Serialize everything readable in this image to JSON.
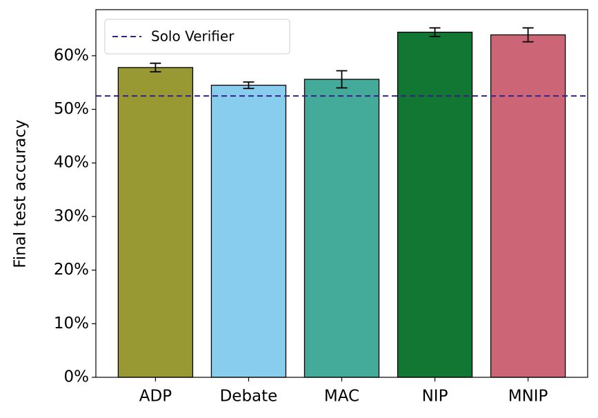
{
  "chart_data": {
    "type": "bar",
    "y_label": "Final test accuracy",
    "categories": [
      "ADP",
      "Debate",
      "MAC",
      "NIP",
      "MNIP"
    ],
    "values": [
      57.8,
      54.5,
      55.6,
      64.4,
      63.9
    ],
    "errors": [
      0.8,
      0.6,
      1.6,
      0.8,
      1.3
    ],
    "colors": [
      "#999933",
      "#88ccee",
      "#44aa99",
      "#117733",
      "#cc6677"
    ],
    "reference_line": {
      "name": "Solo Verifier",
      "value": 52.5,
      "color": "#332288"
    },
    "ylim": [
      0,
      68.6
    ],
    "yticks": [
      {
        "value": 0,
        "label": "0%"
      },
      {
        "value": 10,
        "label": "10%"
      },
      {
        "value": 20,
        "label": "20%"
      },
      {
        "value": 30,
        "label": "30%"
      },
      {
        "value": 40,
        "label": "40%"
      },
      {
        "value": 50,
        "label": "50%"
      },
      {
        "value": 60,
        "label": "60%"
      }
    ],
    "legend": "upper left"
  }
}
